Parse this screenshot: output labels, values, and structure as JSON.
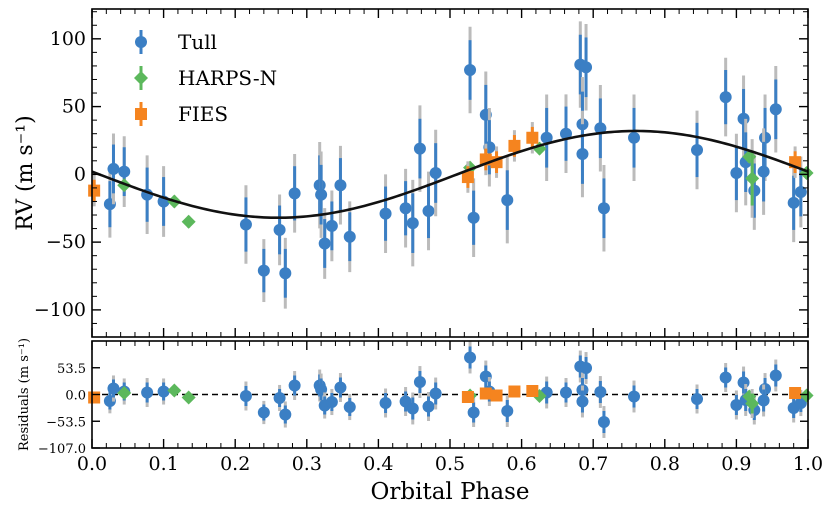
{
  "chart_data": {
    "type": "scatter",
    "xlabel": "Orbital Phase",
    "xlim": [
      0.0,
      1.0
    ],
    "xticks": [
      "0.0",
      "0.1",
      "0.2",
      "0.3",
      "0.4",
      "0.5",
      "0.6",
      "0.7",
      "0.8",
      "0.9",
      "1.0"
    ],
    "legend_position": "top-left",
    "top_panel": {
      "ylabel": "RV (m s⁻¹)",
      "ylim": [
        -120,
        122
      ],
      "yticks": [
        "100",
        "50",
        "0",
        "−50",
        "−100"
      ],
      "model_curve": {
        "amplitude": 32,
        "phase_of_max": 0.76,
        "color": "#111111"
      },
      "series": [
        {
          "name": "Tull",
          "color": "#3b7fc4",
          "marker": "circle",
          "points": [
            {
              "x": 0.025,
              "y": -22,
              "e": 17
            },
            {
              "x": 0.03,
              "y": 4,
              "e": 18
            },
            {
              "x": 0.045,
              "y": 2,
              "e": 18
            },
            {
              "x": 0.077,
              "y": -15,
              "e": 20
            },
            {
              "x": 0.1,
              "y": -20,
              "e": 18
            },
            {
              "x": 0.215,
              "y": -37,
              "e": 20
            },
            {
              "x": 0.24,
              "y": -71,
              "e": 16
            },
            {
              "x": 0.262,
              "y": -41,
              "e": 18
            },
            {
              "x": 0.27,
              "y": -73,
              "e": 18
            },
            {
              "x": 0.283,
              "y": -14,
              "e": 20
            },
            {
              "x": 0.318,
              "y": -8,
              "e": 22
            },
            {
              "x": 0.32,
              "y": -15,
              "e": 22
            },
            {
              "x": 0.325,
              "y": -51,
              "e": 18
            },
            {
              "x": 0.335,
              "y": -38,
              "e": 18
            },
            {
              "x": 0.347,
              "y": -8,
              "e": 20
            },
            {
              "x": 0.36,
              "y": -46,
              "e": 18
            },
            {
              "x": 0.41,
              "y": -29,
              "e": 20
            },
            {
              "x": 0.438,
              "y": -25,
              "e": 20
            },
            {
              "x": 0.448,
              "y": -36,
              "e": 22
            },
            {
              "x": 0.458,
              "y": 19,
              "e": 22
            },
            {
              "x": 0.47,
              "y": -27,
              "e": 20
            },
            {
              "x": 0.48,
              "y": 1,
              "e": 22
            },
            {
              "x": 0.528,
              "y": 77,
              "e": 22
            },
            {
              "x": 0.533,
              "y": -32,
              "e": 20
            },
            {
              "x": 0.55,
              "y": 44,
              "e": 22
            },
            {
              "x": 0.555,
              "y": 20,
              "e": 20
            },
            {
              "x": 0.58,
              "y": -19,
              "e": 22
            },
            {
              "x": 0.635,
              "y": 27,
              "e": 22
            },
            {
              "x": 0.662,
              "y": 30,
              "e": 20
            },
            {
              "x": 0.682,
              "y": 81,
              "e": 22
            },
            {
              "x": 0.685,
              "y": 37,
              "e": 24
            },
            {
              "x": 0.69,
              "y": 79,
              "e": 22
            },
            {
              "x": 0.685,
              "y": 15,
              "e": 22
            },
            {
              "x": 0.71,
              "y": 34,
              "e": 22
            },
            {
              "x": 0.715,
              "y": -25,
              "e": 22
            },
            {
              "x": 0.757,
              "y": 27,
              "e": 22
            },
            {
              "x": 0.845,
              "y": 18,
              "e": 20
            },
            {
              "x": 0.885,
              "y": 57,
              "e": 20
            },
            {
              "x": 0.9,
              "y": 1,
              "e": 20
            },
            {
              "x": 0.91,
              "y": 41,
              "e": 22
            },
            {
              "x": 0.913,
              "y": 9,
              "e": 22
            },
            {
              "x": 0.925,
              "y": -12,
              "e": 20
            },
            {
              "x": 0.94,
              "y": 27,
              "e": 22
            },
            {
              "x": 0.938,
              "y": 2,
              "e": 22
            },
            {
              "x": 0.955,
              "y": 48,
              "e": 22
            },
            {
              "x": 0.98,
              "y": -21,
              "e": 20
            },
            {
              "x": 0.99,
              "y": -13,
              "e": 18
            }
          ]
        },
        {
          "name": "HARPS-N",
          "color": "#5cb85c",
          "marker": "diamond",
          "points": [
            {
              "x": 0.045,
              "y": -8,
              "e": 3
            },
            {
              "x": 0.115,
              "y": -20,
              "e": 3
            },
            {
              "x": 0.135,
              "y": -35,
              "e": 3
            },
            {
              "x": 0.528,
              "y": 5,
              "e": 3
            },
            {
              "x": 0.625,
              "y": 19,
              "e": 3
            },
            {
              "x": 0.918,
              "y": 13,
              "e": 3
            },
            {
              "x": 0.922,
              "y": -3,
              "e": 20
            },
            {
              "x": 0.998,
              "y": 1,
              "e": 3
            }
          ]
        },
        {
          "name": "FIES",
          "color": "#f5841f",
          "marker": "square",
          "points": [
            {
              "x": 0.003,
              "y": -12,
              "e": 8
            },
            {
              "x": 0.525,
              "y": -2,
              "e": 8
            },
            {
              "x": 0.55,
              "y": 11,
              "e": 8
            },
            {
              "x": 0.565,
              "y": 9,
              "e": 8
            },
            {
              "x": 0.59,
              "y": 21,
              "e": 8
            },
            {
              "x": 0.615,
              "y": 27,
              "e": 8
            },
            {
              "x": 0.982,
              "y": 9,
              "e": 8
            }
          ]
        }
      ]
    },
    "bottom_panel": {
      "ylabel": "Residuals (m s⁻¹)",
      "ylim": [
        -107.0,
        107.0
      ],
      "yticks": [
        "53.5",
        "0.0",
        "−53.5",
        "−107.0"
      ],
      "ytick_values": [
        53.5,
        0,
        -53.5,
        -107
      ],
      "zero_line": true,
      "series": [
        {
          "name": "Tull",
          "color": "#3b7fc4",
          "marker": "circle",
          "points": [
            {
              "x": 0.025,
              "y": -13,
              "e": 17
            },
            {
              "x": 0.03,
              "y": 12,
              "e": 18
            },
            {
              "x": 0.045,
              "y": 6,
              "e": 18
            },
            {
              "x": 0.077,
              "y": 4,
              "e": 20
            },
            {
              "x": 0.1,
              "y": 6,
              "e": 18
            },
            {
              "x": 0.215,
              "y": -3,
              "e": 20
            },
            {
              "x": 0.24,
              "y": -36,
              "e": 16
            },
            {
              "x": 0.262,
              "y": -7,
              "e": 18
            },
            {
              "x": 0.27,
              "y": -40,
              "e": 18
            },
            {
              "x": 0.283,
              "y": 18,
              "e": 20
            },
            {
              "x": 0.318,
              "y": 18,
              "e": 22
            },
            {
              "x": 0.32,
              "y": 10,
              "e": 22
            },
            {
              "x": 0.325,
              "y": -22,
              "e": 18
            },
            {
              "x": 0.335,
              "y": -15,
              "e": 18
            },
            {
              "x": 0.347,
              "y": 14,
              "e": 20
            },
            {
              "x": 0.36,
              "y": -25,
              "e": 18
            },
            {
              "x": 0.41,
              "y": -17,
              "e": 20
            },
            {
              "x": 0.438,
              "y": -14,
              "e": 20
            },
            {
              "x": 0.448,
              "y": -28,
              "e": 22
            },
            {
              "x": 0.458,
              "y": 25,
              "e": 22
            },
            {
              "x": 0.47,
              "y": -24,
              "e": 20
            },
            {
              "x": 0.48,
              "y": 2,
              "e": 22
            },
            {
              "x": 0.528,
              "y": 74,
              "e": 22
            },
            {
              "x": 0.533,
              "y": -36,
              "e": 20
            },
            {
              "x": 0.55,
              "y": 36,
              "e": 22
            },
            {
              "x": 0.555,
              "y": 6,
              "e": 20
            },
            {
              "x": 0.58,
              "y": -33,
              "e": 22
            },
            {
              "x": 0.635,
              "y": 4,
              "e": 22
            },
            {
              "x": 0.662,
              "y": 4,
              "e": 20
            },
            {
              "x": 0.682,
              "y": 56,
              "e": 22
            },
            {
              "x": 0.685,
              "y": 9,
              "e": 24
            },
            {
              "x": 0.69,
              "y": 53,
              "e": 22
            },
            {
              "x": 0.685,
              "y": -14,
              "e": 22
            },
            {
              "x": 0.71,
              "y": 5,
              "e": 22
            },
            {
              "x": 0.715,
              "y": -55,
              "e": 22
            },
            {
              "x": 0.757,
              "y": -4,
              "e": 22
            },
            {
              "x": 0.845,
              "y": -9,
              "e": 20
            },
            {
              "x": 0.885,
              "y": 34,
              "e": 20
            },
            {
              "x": 0.9,
              "y": -21,
              "e": 20
            },
            {
              "x": 0.91,
              "y": 24,
              "e": 22
            },
            {
              "x": 0.913,
              "y": -11,
              "e": 22
            },
            {
              "x": 0.925,
              "y": -31,
              "e": 20
            },
            {
              "x": 0.94,
              "y": 11,
              "e": 22
            },
            {
              "x": 0.938,
              "y": -12,
              "e": 22
            },
            {
              "x": 0.955,
              "y": 38,
              "e": 22
            },
            {
              "x": 0.98,
              "y": -27,
              "e": 20
            },
            {
              "x": 0.99,
              "y": -17,
              "e": 18
            }
          ]
        },
        {
          "name": "HARPS-N",
          "color": "#5cb85c",
          "marker": "diamond",
          "points": [
            {
              "x": 0.045,
              "y": 3,
              "e": 3
            },
            {
              "x": 0.115,
              "y": 8,
              "e": 3
            },
            {
              "x": 0.135,
              "y": -6,
              "e": 3
            },
            {
              "x": 0.528,
              "y": -2,
              "e": 3
            },
            {
              "x": 0.625,
              "y": -3,
              "e": 3
            },
            {
              "x": 0.918,
              "y": -4,
              "e": 3
            },
            {
              "x": 0.922,
              "y": -18,
              "e": 20
            },
            {
              "x": 0.998,
              "y": -2,
              "e": 3
            }
          ]
        },
        {
          "name": "FIES",
          "color": "#f5841f",
          "marker": "square",
          "points": [
            {
              "x": 0.003,
              "y": -6,
              "e": 8
            },
            {
              "x": 0.525,
              "y": -5,
              "e": 8
            },
            {
              "x": 0.55,
              "y": 2,
              "e": 8
            },
            {
              "x": 0.565,
              "y": -2,
              "e": 8
            },
            {
              "x": 0.59,
              "y": 6,
              "e": 8
            },
            {
              "x": 0.615,
              "y": 7,
              "e": 8
            },
            {
              "x": 0.982,
              "y": 3,
              "e": 8
            }
          ]
        }
      ]
    }
  }
}
